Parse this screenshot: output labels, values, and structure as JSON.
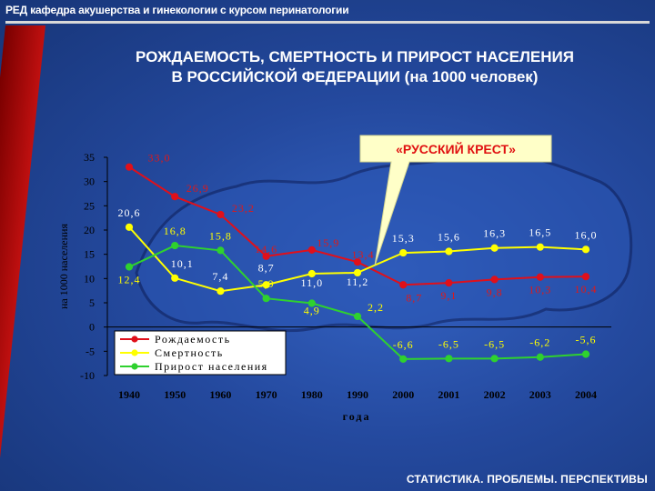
{
  "header": {
    "title": "РЕД кафедра акушерства и гинекологии с курсом перинатологии"
  },
  "footer": {
    "text": "СТАТИСТИКА. ПРОБЛЕМЫ. ПЕРСПЕКТИВЫ"
  },
  "colors": {
    "births": "#e0101a",
    "deaths": "#ffff00",
    "growth": "#2fd12f",
    "callout_fill": "#ffffc8",
    "callout_text": "#e01010"
  },
  "chart_data": {
    "type": "line",
    "title_lines": [
      "РОЖДАЕМОСТЬ, СМЕРТНОСТЬ И ПРИРОСТ НАСЕЛЕНИЯ",
      "В РОССИЙСКОЙ ФЕДЕРАЦИИ (на 1000 человек)"
    ],
    "ylabel": "на 1000 населения",
    "xlabel": "года",
    "ylim": [
      -10,
      35
    ],
    "yticks": [
      35,
      30,
      25,
      20,
      15,
      10,
      5,
      0,
      -5,
      -10
    ],
    "categories": [
      "1940",
      "1950",
      "1960",
      "1970",
      "1980",
      "1990",
      "2000",
      "2001",
      "2002",
      "2003",
      "2004"
    ],
    "series": [
      {
        "name": "Рождаемость",
        "values": [
          33.0,
          26.9,
          23.2,
          14.6,
          15.9,
          13.4,
          8.7,
          9.1,
          9.8,
          10.3,
          10.4
        ],
        "labels": [
          "33,0",
          "26,9",
          "23,2",
          "14,6",
          "15,9",
          "13,4",
          "8,7",
          "9,1",
          "9,8",
          "10,3",
          "10,4"
        ]
      },
      {
        "name": "Смертность",
        "values": [
          20.6,
          10.1,
          7.4,
          8.7,
          11.0,
          11.2,
          15.3,
          15.6,
          16.3,
          16.5,
          16.0
        ],
        "labels": [
          "20,6",
          "10,1",
          "7,4",
          "8,7",
          "11,0",
          "11,2",
          "15,3",
          "15,6",
          "16,3",
          "16,5",
          "16,0"
        ]
      },
      {
        "name": "Прирост населения",
        "values": [
          12.4,
          16.8,
          15.8,
          5.9,
          4.9,
          2.2,
          -6.6,
          -6.5,
          -6.5,
          -6.2,
          -5.6
        ],
        "labels": [
          "12,4",
          "16,8",
          "15,8",
          "5,9",
          "4,9",
          "2,2",
          "-6,6",
          "-6,5",
          "-6,5",
          "-6,2",
          "-5,6"
        ]
      }
    ],
    "legend_position": "bottom-left",
    "grid": false,
    "annotation": "«РУССКИЙ КРЕСТ»"
  }
}
